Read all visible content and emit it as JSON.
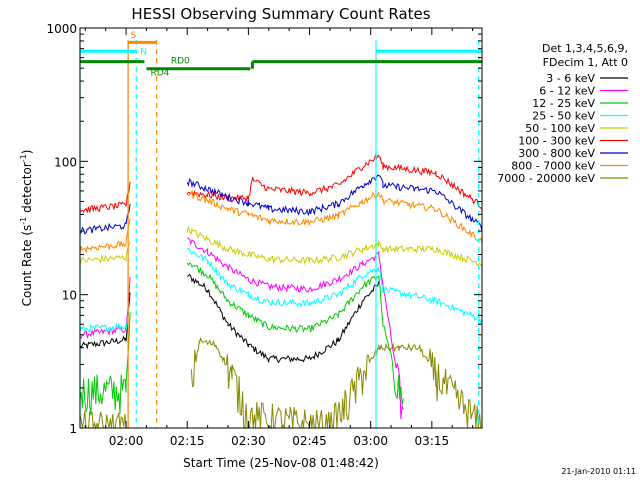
{
  "chart_data": {
    "type": "line",
    "title": "HESSI Observing Summary Count Rates",
    "xlabel": "Start Time (25-Nov-08 01:48:42)",
    "ylabel_main": "Count Rate (s",
    "ylabel_sup1": "-1",
    "ylabel_mid": " detector",
    "ylabel_sup2": "-1",
    "ylabel_end": ")",
    "yscale": "log",
    "ylim": [
      1,
      1000
    ],
    "xlim_minutes": [
      108.7,
      207.3
    ],
    "x_ticks": [
      {
        "t": 120,
        "label": "02:00"
      },
      {
        "t": 135,
        "label": "02:15"
      },
      {
        "t": 150,
        "label": "02:30"
      },
      {
        "t": 165,
        "label": "02:45"
      },
      {
        "t": 180,
        "label": "03:00"
      },
      {
        "t": 195,
        "label": "03:15"
      }
    ],
    "y_ticks": [
      {
        "v": 1,
        "label": "1"
      },
      {
        "v": 10,
        "label": "10"
      },
      {
        "v": 100,
        "label": "100"
      },
      {
        "v": 1000,
        "label": "1000"
      }
    ],
    "legend_header": [
      "Det 1,3,4,5,6,9,",
      "FDecim 1, Att 0"
    ],
    "series": [
      {
        "name": "3 - 6 keV",
        "color": "#000000",
        "pts": [
          [
            108.7,
            4.1
          ],
          [
            120,
            4.6
          ],
          [
            121,
            10
          ],
          [
            123,
            null
          ],
          [
            135,
            14
          ],
          [
            140,
            11
          ],
          [
            145,
            6
          ],
          [
            150,
            4.2
          ],
          [
            155,
            3.3
          ],
          [
            165,
            3.3
          ],
          [
            172,
            4.5
          ],
          [
            178,
            9
          ],
          [
            182,
            12
          ],
          [
            183,
            null
          ],
          [
            207.3,
            null
          ]
        ]
      },
      {
        "name": "6 - 12 keV",
        "color": "#ff00ff",
        "pts": [
          [
            108.7,
            5.0
          ],
          [
            120,
            5.5
          ],
          [
            121,
            13
          ],
          [
            123,
            null
          ],
          [
            135,
            26
          ],
          [
            140,
            21
          ],
          [
            145,
            16
          ],
          [
            150,
            13
          ],
          [
            155,
            11.5
          ],
          [
            165,
            11
          ],
          [
            172,
            13
          ],
          [
            178,
            17
          ],
          [
            182,
            20
          ],
          [
            183,
            12
          ],
          [
            188,
            1.2
          ],
          [
            192,
            null
          ],
          [
            207.3,
            null
          ]
        ]
      },
      {
        "name": "12 - 25 keV",
        "color": "#00cc00",
        "pts": [
          [
            108.7,
            1.9
          ],
          [
            120,
            1.9
          ],
          [
            121,
            7
          ],
          [
            123,
            null
          ],
          [
            135,
            18
          ],
          [
            140,
            14
          ],
          [
            145,
            9
          ],
          [
            150,
            7
          ],
          [
            155,
            5.7
          ],
          [
            165,
            5.5
          ],
          [
            172,
            7
          ],
          [
            178,
            11.5
          ],
          [
            182,
            14
          ],
          [
            183,
            6
          ],
          [
            188,
            1.5
          ],
          [
            192,
            null
          ],
          [
            207.3,
            null
          ]
        ]
      },
      {
        "name": "25 - 50 keV",
        "color": "#00ffff",
        "pts": [
          [
            108.7,
            5.5
          ],
          [
            120,
            5.8
          ],
          [
            121,
            9
          ],
          [
            123,
            null
          ],
          [
            135,
            22
          ],
          [
            140,
            18
          ],
          [
            145,
            12
          ],
          [
            150,
            10
          ],
          [
            155,
            8.8
          ],
          [
            165,
            8.6
          ],
          [
            172,
            10
          ],
          [
            178,
            14
          ],
          [
            182,
            16
          ],
          [
            183,
            11
          ],
          [
            196,
            9
          ],
          [
            207.3,
            6.5
          ]
        ]
      },
      {
        "name": "50 - 100 keV",
        "color": "#cccc00",
        "pts": [
          [
            108.7,
            18
          ],
          [
            120,
            19
          ],
          [
            121,
            26
          ],
          [
            123,
            null
          ],
          [
            135,
            31
          ],
          [
            140,
            26
          ],
          [
            145,
            22
          ],
          [
            150,
            20
          ],
          [
            155,
            18.5
          ],
          [
            165,
            18
          ],
          [
            172,
            19
          ],
          [
            178,
            22
          ],
          [
            182,
            24
          ],
          [
            183,
            22
          ],
          [
            196,
            22
          ],
          [
            207.3,
            17
          ]
        ]
      },
      {
        "name": "100 - 300 keV",
        "color": "#ff0000",
        "pts": [
          [
            108.7,
            43
          ],
          [
            120,
            47
          ],
          [
            121,
            70
          ],
          [
            123,
            null
          ],
          [
            135,
            59
          ],
          [
            140,
            56
          ],
          [
            145,
            53
          ],
          [
            150,
            53
          ],
          [
            151,
            73
          ],
          [
            155,
            62
          ],
          [
            165,
            58
          ],
          [
            172,
            66
          ],
          [
            178,
            92
          ],
          [
            182,
            110
          ],
          [
            183,
            92
          ],
          [
            196,
            82
          ],
          [
            207.3,
            46
          ]
        ]
      },
      {
        "name": "300 - 800 keV",
        "color": "#0000cc",
        "pts": [
          [
            108.7,
            30
          ],
          [
            120,
            33
          ],
          [
            121,
            48
          ],
          [
            123,
            null
          ],
          [
            135,
            71
          ],
          [
            140,
            62
          ],
          [
            145,
            54
          ],
          [
            150,
            49
          ],
          [
            155,
            44
          ],
          [
            165,
            42
          ],
          [
            172,
            48
          ],
          [
            178,
            66
          ],
          [
            182,
            80
          ],
          [
            183,
            66
          ],
          [
            196,
            60
          ],
          [
            207.3,
            32
          ]
        ]
      },
      {
        "name": "800 - 7000 keV",
        "color": "#ff8800",
        "pts": [
          [
            108.7,
            22
          ],
          [
            120,
            24
          ],
          [
            121,
            38
          ],
          [
            123,
            null
          ],
          [
            135,
            58
          ],
          [
            140,
            51
          ],
          [
            145,
            44
          ],
          [
            150,
            40
          ],
          [
            155,
            36
          ],
          [
            165,
            35
          ],
          [
            172,
            39
          ],
          [
            178,
            50
          ],
          [
            182,
            58
          ],
          [
            183,
            51
          ],
          [
            196,
            44
          ],
          [
            207.3,
            25
          ]
        ]
      },
      {
        "name": "7000 - 20000 keV",
        "color": "#888800",
        "pts": [
          [
            108.7,
            1.0
          ],
          [
            120,
            1.0
          ],
          [
            123,
            null
          ],
          [
            136,
            2.1
          ],
          [
            138,
            4.5
          ],
          [
            142,
            4.2
          ],
          [
            146,
            2.5
          ],
          [
            150,
            1.2
          ],
          [
            170,
            1.0
          ],
          [
            174,
            1.5
          ],
          [
            178,
            2.5
          ],
          [
            182,
            4
          ],
          [
            187,
            4
          ],
          [
            192,
            4
          ],
          [
            196,
            2.5
          ],
          [
            207.3,
            1.0
          ]
        ]
      }
    ],
    "vlines": [
      {
        "t": 108.7,
        "color": "#00ffff",
        "style": "solid"
      },
      {
        "t": 120.5,
        "color": "#ff8800",
        "style": "solid"
      },
      {
        "t": 122.5,
        "color": "#00ffff",
        "style": "dashed"
      },
      {
        "t": 127.5,
        "color": "#ff8800",
        "style": "dashed"
      },
      {
        "t": 181.3,
        "color": "#00ffff",
        "style": "solid"
      },
      {
        "t": 206.5,
        "color": "#00ffff",
        "style": "dashed"
      }
    ],
    "bars": [
      {
        "label": "S",
        "color": "#ff8800",
        "t0": 120.5,
        "t1": 127.5,
        "level": 780,
        "label_t": 120.1,
        "label_level": 900
      },
      {
        "label": "N",
        "color": "#00ffff",
        "t0": 108.7,
        "t1": 122.5,
        "level": 670,
        "label_t": 122.5,
        "label_level": 680,
        "t2": 181.3,
        "t3": 207.3
      },
      {
        "label": "RD4",
        "color": "#008800",
        "t0": 108.7,
        "t1": 124.5,
        "level": 560,
        "label_t": 125,
        "label_level": 470
      },
      {
        "label": "RD0",
        "color": "#008800",
        "t0": 125,
        "t1": 150.5,
        "level": 495,
        "label_t": 130,
        "label_level": 580,
        "t2": 151,
        "t3": 207.3,
        "level2": 560
      }
    ]
  },
  "footer": {
    "timestamp": "21-Jan-2010 01:11"
  }
}
